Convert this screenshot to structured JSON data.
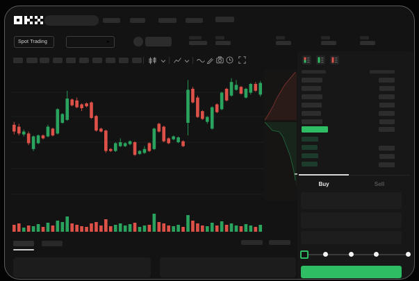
{
  "header": {
    "logo": "OKX",
    "search_placeholder": "",
    "nav_item_count": 5
  },
  "subheader": {
    "market_type": "Spot Trading",
    "stat_count": 5
  },
  "toolbar": {
    "timeframe_button_count": 10,
    "icons": [
      "candle-type-icon",
      "chevron-down-icon",
      "indicators-icon",
      "chevron-down-icon",
      "wave-icon",
      "draw-icon",
      "camera-icon",
      "clock-icon",
      "fullscreen-icon"
    ]
  },
  "chart_data": {
    "type": "candlestick",
    "title": "",
    "xlabel": "",
    "ylabel": "",
    "price_scale": [
      0,
      100
    ],
    "grid": true,
    "up_color": "#2aa35f",
    "down_color": "#de5149",
    "candles": [
      [
        43,
        46,
        33,
        36
      ],
      [
        41,
        44,
        32,
        34
      ],
      [
        33,
        38,
        31,
        36
      ],
      [
        34,
        36,
        22,
        24
      ],
      [
        18,
        32,
        16,
        31
      ],
      [
        24,
        33,
        23,
        32
      ],
      [
        32,
        33,
        28,
        29
      ],
      [
        31,
        43,
        30,
        41
      ],
      [
        39,
        40,
        31,
        32
      ],
      [
        34,
        60,
        33,
        59
      ],
      [
        45,
        55,
        44,
        54
      ],
      [
        48,
        78,
        47,
        70
      ],
      [
        69,
        70,
        62,
        63
      ],
      [
        68,
        71,
        60,
        61
      ],
      [
        64,
        65,
        57,
        60
      ],
      [
        65,
        66,
        61,
        62
      ],
      [
        66,
        67,
        49,
        50
      ],
      [
        52,
        53,
        36,
        37
      ],
      [
        39,
        40,
        35,
        36
      ],
      [
        37,
        38,
        14,
        16
      ],
      [
        18,
        19,
        15,
        16
      ],
      [
        16,
        25,
        15,
        24
      ],
      [
        21,
        29,
        20,
        25
      ],
      [
        21,
        25,
        20,
        24
      ],
      [
        23,
        27,
        22,
        26
      ],
      [
        25,
        26,
        11,
        12
      ],
      [
        13,
        17,
        12,
        16
      ],
      [
        14,
        21,
        13,
        18
      ],
      [
        24,
        25,
        15,
        16
      ],
      [
        18,
        40,
        17,
        39
      ],
      [
        44,
        45,
        35,
        36
      ],
      [
        41,
        42,
        25,
        26
      ],
      [
        29,
        30,
        23,
        24
      ],
      [
        28,
        32,
        27,
        31
      ],
      [
        25,
        31,
        24,
        30
      ],
      [
        26,
        27,
        20,
        21
      ],
      [
        45,
        89,
        32,
        79
      ],
      [
        80,
        82,
        65,
        66
      ],
      [
        71,
        73,
        50,
        51
      ],
      [
        57,
        58,
        48,
        49
      ],
      [
        46,
        52,
        44,
        51
      ],
      [
        39,
        62,
        38,
        61
      ],
      [
        64,
        65,
        55,
        56
      ],
      [
        59,
        77,
        58,
        76
      ],
      [
        80,
        81,
        67,
        68
      ],
      [
        73,
        91,
        72,
        87
      ],
      [
        79,
        89,
        78,
        84
      ],
      [
        82,
        83,
        74,
        75
      ],
      [
        71,
        81,
        70,
        80
      ],
      [
        76,
        86,
        74,
        85
      ],
      [
        85,
        87,
        77,
        78
      ],
      [
        74,
        88,
        72,
        86
      ]
    ],
    "volumes": [
      10,
      12,
      6,
      9,
      8,
      11,
      7,
      13,
      9,
      16,
      14,
      22,
      12,
      10,
      8,
      7,
      12,
      14,
      9,
      18,
      8,
      10,
      12,
      9,
      11,
      13,
      7,
      9,
      10,
      26,
      14,
      12,
      9,
      8,
      10,
      7,
      24,
      16,
      12,
      9,
      8,
      13,
      9,
      15,
      10,
      12,
      9,
      8,
      11,
      9,
      7,
      10
    ],
    "depth": {
      "asks_line": [
        [
          1,
          73
        ],
        [
          8,
          62
        ],
        [
          13,
          53
        ],
        [
          18,
          42
        ],
        [
          30,
          22
        ],
        [
          45,
          4
        ]
      ],
      "bids_line": [
        [
          1,
          76
        ],
        [
          12,
          88
        ],
        [
          22,
          90
        ],
        [
          27,
          97
        ],
        [
          32,
          110
        ],
        [
          38,
          126
        ],
        [
          43,
          147
        ],
        [
          45,
          160
        ]
      ]
    }
  },
  "order_book": {
    "view_modes": [
      "all",
      "bids",
      "asks"
    ],
    "asks": [
      [
        30,
        23
      ],
      [
        28,
        22
      ],
      [
        30,
        23
      ],
      [
        29,
        22
      ],
      [
        28,
        23
      ],
      [
        30,
        22
      ]
    ],
    "last_price_width": 38,
    "last_price_right_bar": 23,
    "bids": [
      [
        24,
        0
      ],
      [
        23,
        23
      ],
      [
        24,
        22
      ],
      [
        23,
        23
      ]
    ]
  },
  "trade_panel": {
    "buy_tab": "Buy",
    "sell_tab": "Sell",
    "input_count": 3,
    "slider_positions": [
      437,
      468,
      505,
      541,
      587
    ],
    "slider_value_index": 0,
    "buy_button_color": "#2ebd63"
  },
  "skeleton": [
    [
      148,
      26,
      25,
      7,
      "#2c2c2c",
      2,
      "nav-item",
      1
    ],
    [
      187,
      26,
      22,
      7,
      "#2c2c2c",
      2,
      "nav-item",
      1
    ],
    [
      228,
      26,
      26,
      7,
      "#2c2c2c",
      2,
      "nav-item",
      1
    ],
    [
      267,
      26,
      25,
      7,
      "#2c2c2c",
      2,
      "nav-item",
      1
    ],
    [
      310,
      24,
      27,
      8,
      "#2c2c2c",
      2,
      "nav-item",
      1
    ],
    [
      272,
      52,
      18,
      5,
      "#262626",
      2,
      "stat-label",
      0
    ],
    [
      272,
      59,
      26,
      6,
      "#2e2e2e",
      2,
      "stat-value",
      0
    ],
    [
      310,
      52,
      13,
      5,
      "#262626",
      2,
      "stat-label",
      0
    ],
    [
      310,
      59,
      22,
      6,
      "#2e2e2e",
      2,
      "stat-value",
      0
    ],
    [
      397,
      52,
      13,
      5,
      "#262626",
      2,
      "stat-label",
      0
    ],
    [
      397,
      59,
      22,
      6,
      "#2e2e2e",
      2,
      "stat-value",
      0
    ],
    [
      462,
      52,
      13,
      5,
      "#262626",
      2,
      "stat-label",
      0
    ],
    [
      462,
      59,
      22,
      6,
      "#2e2e2e",
      2,
      "stat-value",
      0
    ],
    [
      518,
      52,
      13,
      5,
      "#262626",
      2,
      "stat-label",
      0
    ],
    [
      518,
      59,
      22,
      6,
      "#2e2e2e",
      2,
      "stat-value",
      0
    ],
    [
      19,
      83,
      14,
      8,
      "#2d2d2d",
      2,
      "timeframe-button",
      1
    ],
    [
      38,
      83,
      16,
      8,
      "#2d2d2d",
      2,
      "timeframe-button",
      1
    ],
    [
      57,
      83,
      14,
      8,
      "#2d2d2d",
      2,
      "timeframe-button",
      1
    ],
    [
      76,
      83,
      14,
      8,
      "#2d2d2d",
      2,
      "timeframe-button",
      1
    ],
    [
      95,
      83,
      14,
      8,
      "#2d2d2d",
      2,
      "timeframe-button",
      1
    ],
    [
      114,
      83,
      14,
      8,
      "#2d2d2d",
      2,
      "timeframe-button",
      1
    ],
    [
      133,
      83,
      14,
      8,
      "#2d2d2d",
      2,
      "timeframe-button",
      1
    ],
    [
      152,
      83,
      14,
      8,
      "#2d2d2d",
      2,
      "timeframe-button",
      1
    ],
    [
      171,
      83,
      14,
      8,
      "#2d2d2d",
      2,
      "timeframe-button",
      1
    ],
    [
      190,
      83,
      14,
      8,
      "#2d2d2d",
      2,
      "timeframe-button",
      1
    ],
    [
      434,
      101,
      35,
      5,
      "#2a2a2a",
      2,
      "orderbook-price-header",
      0
    ],
    [
      532,
      101,
      36,
      5,
      "#2a2a2a",
      2,
      "orderbook-amount-header",
      0
    ],
    [
      19,
      347,
      30,
      8,
      "#2e2e2e",
      2,
      "bottom-tab-active",
      1
    ],
    [
      60,
      347,
      30,
      8,
      "#282828",
      2,
      "bottom-tab",
      1
    ],
    [
      19,
      359,
      30,
      2,
      "#cfcfcf",
      1,
      "bottom-tab-indicator",
      0
    ],
    [
      347,
      346,
      31,
      7,
      "#2a2a2a",
      2,
      "bottom-action-button",
      1
    ],
    [
      387,
      346,
      31,
      7,
      "#2a2a2a",
      2,
      "bottom-action-button",
      1
    ],
    [
      19,
      371,
      198,
      29,
      "#1c1c1c",
      4,
      "bottom-panel",
      0
    ],
    [
      230,
      371,
      196,
      29,
      "#1c1c1c",
      4,
      "bottom-panel",
      0
    ]
  ]
}
